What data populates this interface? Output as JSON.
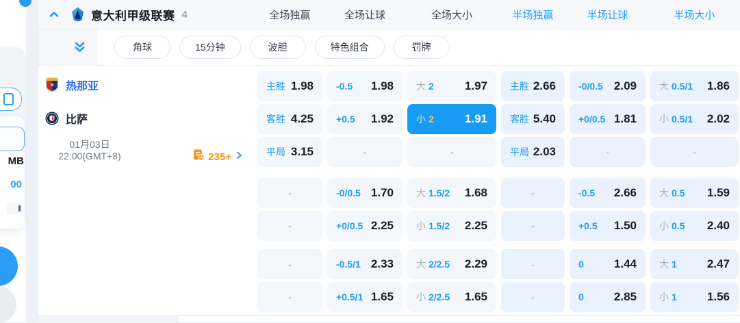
{
  "colors": {
    "accent_blue": "#1e9cf3",
    "selected_cell_bg": "#189bf2",
    "selected_line_gold": "#e9c468",
    "full_time_cell_bg": "#f3f6fa",
    "half_time_cell_bg": "#e9f2fd",
    "more_markets_orange": "#ff9016",
    "home_team_blue": "#2e6ef5"
  },
  "sidebar": {
    "balance_unit": "MB",
    "balance_value": "00"
  },
  "league_header": {
    "title": "意大利甲级联赛",
    "count": "4"
  },
  "market_headers": [
    {
      "label": "全场独赢",
      "tone": "dark"
    },
    {
      "label": "全场让球",
      "tone": "dark"
    },
    {
      "label": "全场大小",
      "tone": "dark"
    },
    {
      "label": "半场独赢",
      "tone": "blue"
    },
    {
      "label": "半场让球",
      "tone": "blue"
    },
    {
      "label": "半场大小",
      "tone": "blue"
    }
  ],
  "filter_pills": [
    "角球",
    "15分钟",
    "波胆",
    "特色组合",
    "罚牌"
  ],
  "match": {
    "home": "热那亚",
    "away": "比萨",
    "date": "01月03日",
    "time": "22:00(GMT+8)",
    "more_markets": "235+"
  },
  "odds_blocks": [
    {
      "columns": [
        {
          "scope": "full",
          "cells": [
            {
              "label": "主胜",
              "value": "1.98"
            },
            {
              "label": "客胜",
              "value": "4.25"
            },
            {
              "label": "平局",
              "value": "3.15"
            }
          ]
        },
        {
          "scope": "full",
          "cells": [
            {
              "line": "-0.5",
              "value": "1.98"
            },
            {
              "line": "+0.5",
              "value": "1.92"
            },
            {
              "dash": true
            }
          ]
        },
        {
          "scope": "full",
          "cells": [
            {
              "side": "大",
              "line": "2",
              "value": "1.97"
            },
            {
              "side": "小",
              "line": "2",
              "value": "1.91",
              "selected": true
            },
            {
              "dash": true
            }
          ]
        },
        {
          "scope": "half",
          "cells": [
            {
              "label": "主胜",
              "value": "2.66"
            },
            {
              "label": "客胜",
              "value": "5.40"
            },
            {
              "label": "平局",
              "value": "2.03"
            }
          ]
        },
        {
          "scope": "half",
          "cells": [
            {
              "line": "-0/0.5",
              "value": "2.09"
            },
            {
              "line": "+0/0.5",
              "value": "1.81"
            },
            {
              "dash": true
            }
          ]
        },
        {
          "scope": "half",
          "cells": [
            {
              "side": "大",
              "line": "0.5/1",
              "value": "1.86"
            },
            {
              "side": "小",
              "line": "0.5/1",
              "value": "2.02"
            },
            {
              "dash": true
            }
          ]
        }
      ]
    },
    {
      "columns": [
        {
          "scope": "full",
          "cells": [
            {
              "dash": true
            },
            {
              "dash": true
            }
          ]
        },
        {
          "scope": "full",
          "cells": [
            {
              "line": "-0/0.5",
              "value": "1.70"
            },
            {
              "line": "+0/0.5",
              "value": "2.25"
            }
          ]
        },
        {
          "scope": "full",
          "cells": [
            {
              "side": "大",
              "line": "1.5/2",
              "value": "1.68"
            },
            {
              "side": "小",
              "line": "1.5/2",
              "value": "2.25"
            }
          ]
        },
        {
          "scope": "half",
          "cells": [
            {
              "dash": true
            },
            {
              "dash": true
            }
          ]
        },
        {
          "scope": "half",
          "cells": [
            {
              "line": "-0.5",
              "value": "2.66"
            },
            {
              "line": "+0.5",
              "value": "1.50"
            }
          ]
        },
        {
          "scope": "half",
          "cells": [
            {
              "side": "大",
              "line": "0.5",
              "value": "1.59"
            },
            {
              "side": "小",
              "line": "0.5",
              "value": "2.40"
            }
          ]
        }
      ]
    },
    {
      "columns": [
        {
          "scope": "full",
          "cells": [
            {
              "dash": true
            },
            {
              "dash": true
            }
          ]
        },
        {
          "scope": "full",
          "cells": [
            {
              "line": "-0.5/1",
              "value": "2.33"
            },
            {
              "line": "+0.5/1",
              "value": "1.65"
            }
          ]
        },
        {
          "scope": "full",
          "cells": [
            {
              "side": "大",
              "line": "2/2.5",
              "value": "2.29"
            },
            {
              "side": "小",
              "line": "2/2.5",
              "value": "1.65"
            }
          ]
        },
        {
          "scope": "half",
          "cells": [
            {
              "dash": true
            },
            {
              "dash": true
            }
          ]
        },
        {
          "scope": "half",
          "cells": [
            {
              "line": "0",
              "value": "1.44"
            },
            {
              "line": "0",
              "value": "2.85"
            }
          ]
        },
        {
          "scope": "half",
          "cells": [
            {
              "side": "大",
              "line": "1",
              "value": "2.47"
            },
            {
              "side": "小",
              "line": "1",
              "value": "1.56"
            }
          ]
        }
      ]
    }
  ]
}
